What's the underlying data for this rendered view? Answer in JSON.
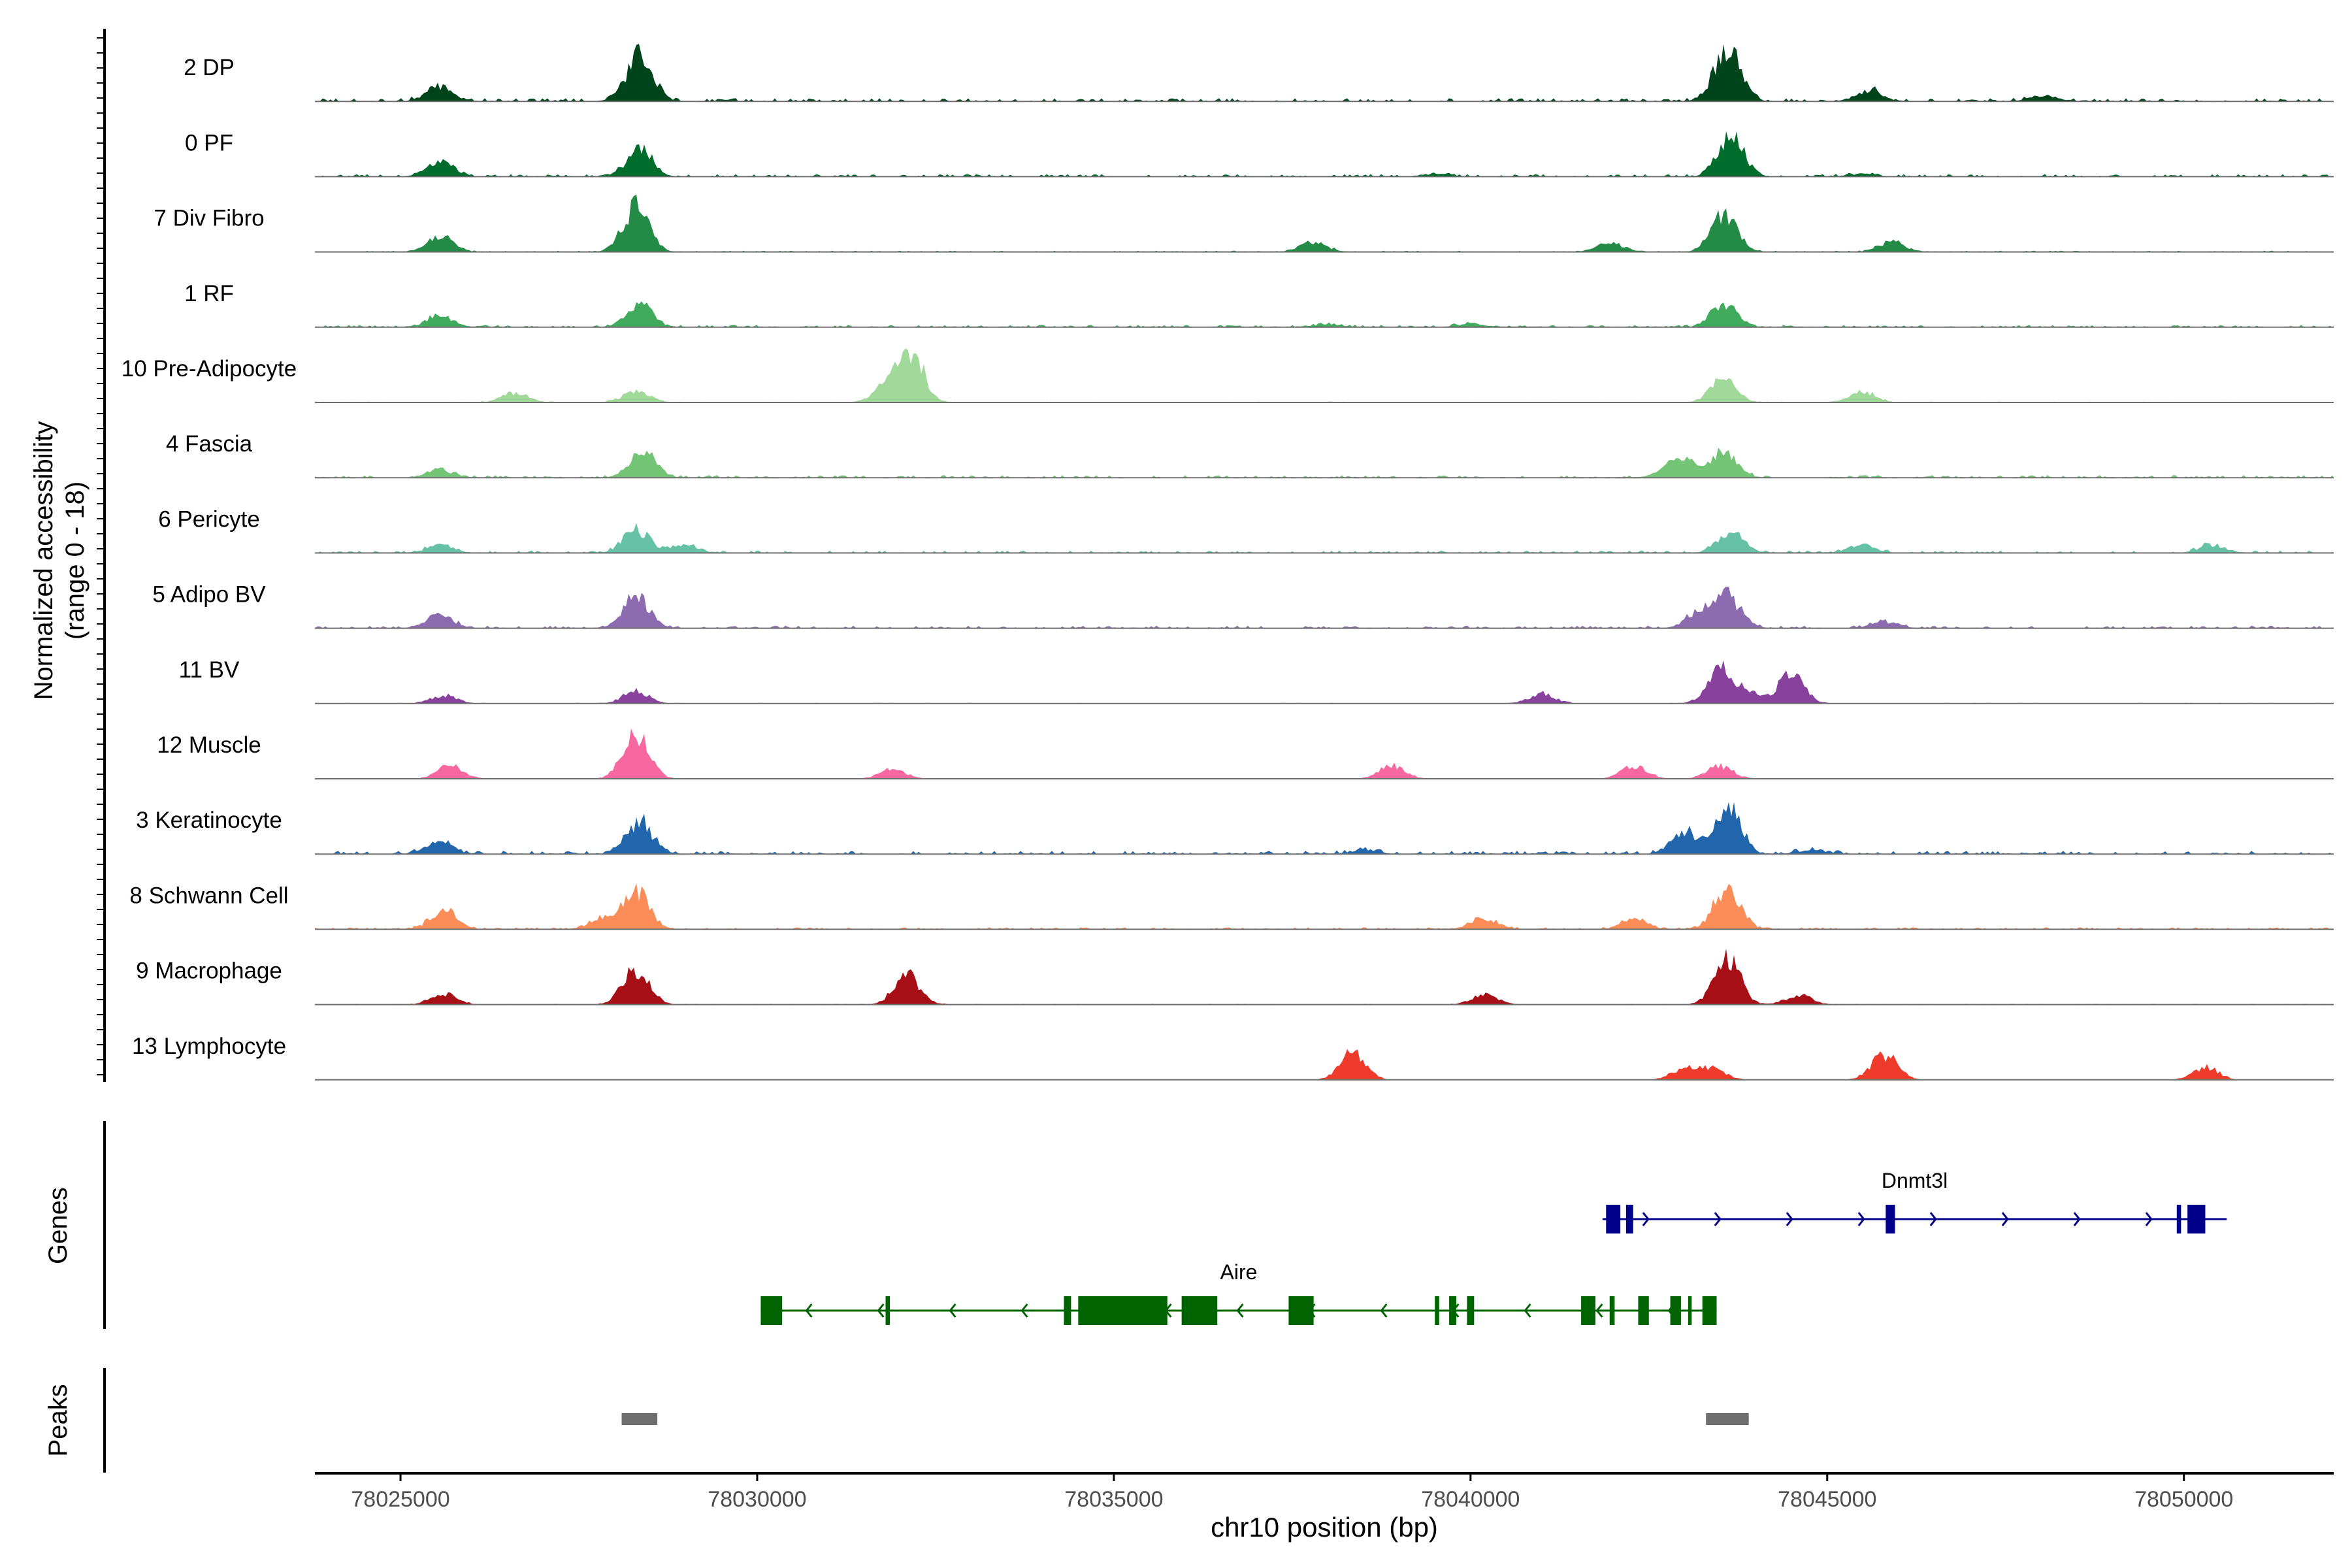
{
  "chart_data": {
    "type": "area",
    "title": "",
    "y_axis_title_line1": "Normalized accessibility",
    "y_axis_title_line2": "(range 0 - 18)",
    "ylim": [
      0,
      18
    ],
    "xlabel": "chr10 position (bp)",
    "xlim": [
      78023800,
      78052100
    ],
    "x_ticks": [
      78025000,
      78030000,
      78035000,
      78040000,
      78045000,
      78050000
    ],
    "x_tick_labels": [
      "78025000",
      "78030000",
      "78035000",
      "78040000",
      "78045000",
      "78050000"
    ],
    "panel_labels": {
      "genes": "Genes",
      "peaks": "Peaks"
    },
    "tracks": [
      {
        "name": "2 DP",
        "color": "#00441b",
        "peaks": [
          [
            78025550,
            4.5
          ],
          [
            78028350,
            15
          ],
          [
            78043600,
            17
          ],
          [
            78045600,
            3.5
          ],
          [
            78048000,
            1.5
          ]
        ],
        "background": 0.5
      },
      {
        "name": "0 PF",
        "color": "#006d2c",
        "peaks": [
          [
            78025550,
            5
          ],
          [
            78028350,
            8.5
          ],
          [
            78043650,
            13
          ],
          [
            78039500,
            0.8
          ],
          [
            78045500,
            0.8
          ]
        ],
        "background": 0.4
      },
      {
        "name": "7 Div Fibro",
        "color": "#238b45",
        "peaks": [
          [
            78025550,
            5
          ],
          [
            78028300,
            14
          ],
          [
            78043550,
            11
          ],
          [
            78037800,
            3
          ],
          [
            78041950,
            3
          ],
          [
            78045900,
            3
          ]
        ],
        "background": 0.2
      },
      {
        "name": "1 RF",
        "color": "#41ab5d",
        "peaks": [
          [
            78025550,
            3.5
          ],
          [
            78028350,
            7
          ],
          [
            78043550,
            7
          ],
          [
            78040000,
            1
          ],
          [
            78038000,
            0.8
          ]
        ],
        "background": 0.35
      },
      {
        "name": "10 Pre-Adipocyte",
        "color": "#a1d99b",
        "peaks": [
          [
            78032150,
            16
          ],
          [
            78031800,
            5
          ],
          [
            78028300,
            3.5
          ],
          [
            78026600,
            3
          ],
          [
            78043550,
            7
          ],
          [
            78045500,
            3.5
          ]
        ],
        "background": 0.15
      },
      {
        "name": "4 Fascia",
        "color": "#74c476",
        "peaks": [
          [
            78025550,
            2.5
          ],
          [
            78028400,
            8
          ],
          [
            78043550,
            8
          ],
          [
            78043000,
            4
          ],
          [
            78042800,
            2.5
          ]
        ],
        "background": 0.4
      },
      {
        "name": "6 Pericyte",
        "color": "#66c2a4",
        "peaks": [
          [
            78025550,
            2.5
          ],
          [
            78028300,
            7
          ],
          [
            78043650,
            6.5
          ],
          [
            78045500,
            2.5
          ],
          [
            78050400,
            2.5
          ],
          [
            78029000,
            2.5
          ]
        ],
        "background": 0.4
      },
      {
        "name": "5 Adipo BV",
        "color": "#8c6bb1",
        "peaks": [
          [
            78025550,
            4
          ],
          [
            78028300,
            10
          ],
          [
            78043600,
            10
          ],
          [
            78043200,
            4.5
          ],
          [
            78045800,
            2
          ]
        ],
        "background": 0.4
      },
      {
        "name": "11 BV",
        "color": "#88419d",
        "peaks": [
          [
            78025600,
            2.5
          ],
          [
            78028300,
            4
          ],
          [
            78043500,
            11
          ],
          [
            78044500,
            9
          ],
          [
            78043900,
            3
          ],
          [
            78041000,
            3
          ]
        ],
        "background": 0.1
      },
      {
        "name": "12 Muscle",
        "color": "#f768a1",
        "peaks": [
          [
            78028300,
            14
          ],
          [
            78025700,
            4
          ],
          [
            78031900,
            3
          ],
          [
            78038900,
            4
          ],
          [
            78042300,
            4
          ],
          [
            78043500,
            4
          ]
        ],
        "background": 0.05
      },
      {
        "name": "3 Keratinocyte",
        "color": "#2166ac",
        "peaks": [
          [
            78025550,
            3.5
          ],
          [
            78028350,
            10
          ],
          [
            78043600,
            14
          ],
          [
            78043000,
            7
          ],
          [
            78038500,
            1.2
          ],
          [
            78044800,
            1.2
          ]
        ],
        "background": 0.5
      },
      {
        "name": "8 Schwann Cell",
        "color": "#fc8d59",
        "peaks": [
          [
            78025600,
            6
          ],
          [
            78028300,
            12
          ],
          [
            78043600,
            13
          ],
          [
            78040200,
            3.5
          ],
          [
            78027800,
            3
          ],
          [
            78042300,
            3
          ]
        ],
        "background": 0.3
      },
      {
        "name": "9 Macrophage",
        "color": "#a50f15",
        "peaks": [
          [
            78028300,
            11
          ],
          [
            78043600,
            14
          ],
          [
            78032100,
            9
          ],
          [
            78044600,
            3
          ],
          [
            78025600,
            3.5
          ],
          [
            78040200,
            3
          ]
        ],
        "background": 0.1
      },
      {
        "name": "13 Lymphocyte",
        "color": "#ef3b2c",
        "peaks": [
          [
            78038350,
            9
          ],
          [
            78045800,
            8
          ],
          [
            78043400,
            3.5
          ],
          [
            78050300,
            4
          ],
          [
            78043000,
            3.5
          ]
        ],
        "background": 0.0
      }
    ],
    "genes": [
      {
        "name": "Dnmt3l",
        "color": "#00008b",
        "strand": "+",
        "start": 78041850,
        "end": 78050600,
        "exons": [
          [
            78041900,
            78042100
          ],
          [
            78042180,
            78042280
          ],
          [
            78045820,
            78045950
          ],
          [
            78049900,
            78049960
          ],
          [
            78050050,
            78050300
          ]
        ]
      },
      {
        "name": "Aire",
        "color": "#006400",
        "strand": "-",
        "start": 78030050,
        "end": 78043450,
        "exons": [
          [
            78030050,
            78030350
          ],
          [
            78031800,
            78031860
          ],
          [
            78034300,
            78034400
          ],
          [
            78034500,
            78035750
          ],
          [
            78035950,
            78036450
          ],
          [
            78037450,
            78037800
          ],
          [
            78039500,
            78039560
          ],
          [
            78039700,
            78039800
          ],
          [
            78039950,
            78040050
          ],
          [
            78041550,
            78041750
          ],
          [
            78041950,
            78042020
          ],
          [
            78042350,
            78042500
          ],
          [
            78042800,
            78042950
          ],
          [
            78043050,
            78043100
          ],
          [
            78043250,
            78043450
          ]
        ]
      }
    ],
    "peaks": [
      [
        78028100,
        78028600
      ],
      [
        78043300,
        78043900
      ]
    ]
  }
}
